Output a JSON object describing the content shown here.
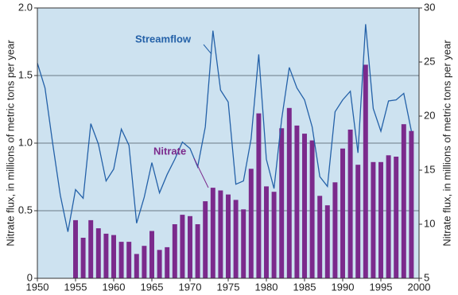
{
  "chart_data": {
    "type": "bar-line",
    "x": [
      1950,
      1951,
      1952,
      1953,
      1954,
      1955,
      1956,
      1957,
      1958,
      1959,
      1960,
      1961,
      1962,
      1963,
      1964,
      1965,
      1966,
      1967,
      1968,
      1969,
      1970,
      1971,
      1972,
      1973,
      1974,
      1975,
      1976,
      1977,
      1978,
      1979,
      1980,
      1981,
      1982,
      1983,
      1984,
      1985,
      1986,
      1987,
      1988,
      1989,
      1990,
      1991,
      1992,
      1993,
      1994,
      1995,
      1996,
      1997,
      1998,
      1999
    ],
    "series": [
      {
        "name": "Nitrate",
        "type": "bar",
        "color": "#7b2a8c",
        "values": [
          null,
          null,
          null,
          null,
          null,
          0.43,
          0.3,
          0.43,
          0.37,
          0.33,
          0.32,
          0.27,
          0.27,
          0.18,
          0.24,
          0.35,
          0.21,
          0.23,
          0.4,
          0.47,
          0.46,
          0.4,
          0.57,
          0.67,
          0.65,
          0.62,
          0.58,
          0.51,
          0.81,
          1.22,
          0.68,
          0.64,
          1.11,
          1.26,
          1.13,
          1.07,
          1.02,
          0.61,
          0.54,
          0.71,
          0.96,
          1.1,
          0.84,
          1.58,
          0.86,
          0.86,
          0.91,
          0.9,
          1.14,
          1.09
        ]
      },
      {
        "name": "Streamflow",
        "type": "line",
        "axis": "y2",
        "color": "#2461a8",
        "values": [
          24.9,
          22.6,
          17.5,
          12.7,
          9.3,
          13.2,
          12.4,
          19.3,
          17.4,
          14.0,
          15.1,
          18.8,
          17.3,
          10.1,
          12.5,
          15.7,
          12.9,
          14.6,
          16.0,
          17.6,
          17.0,
          15.3,
          19.0,
          27.9,
          22.4,
          21.3,
          13.7,
          14.0,
          17.9,
          25.7,
          16.0,
          13.3,
          19.7,
          24.5,
          22.6,
          21.5,
          19.0,
          14.4,
          13.5,
          20.4,
          21.5,
          22.3,
          16.6,
          28.5,
          20.7,
          18.6,
          21.4,
          21.5,
          22.1,
          18.6
        ]
      }
    ],
    "y_label": "Nitrate flux, in millions of metric tons per year",
    "y2_label": "Nitrate flux, in millions of metric tons per year",
    "xlim": [
      1950,
      2000
    ],
    "xticks": [
      1950,
      1955,
      1960,
      1965,
      1970,
      1975,
      1980,
      1985,
      1990,
      1995,
      2000
    ],
    "ylim": [
      0,
      2
    ],
    "yticks": [
      0,
      0.5,
      {
        "value": 1,
        "label": "1.0"
      },
      1.5,
      {
        "value": 2,
        "label": "2.0"
      }
    ],
    "y2lim": [
      5,
      30
    ],
    "y2ticks": [
      5,
      10,
      15,
      20,
      25,
      30
    ],
    "grid": true
  }
}
